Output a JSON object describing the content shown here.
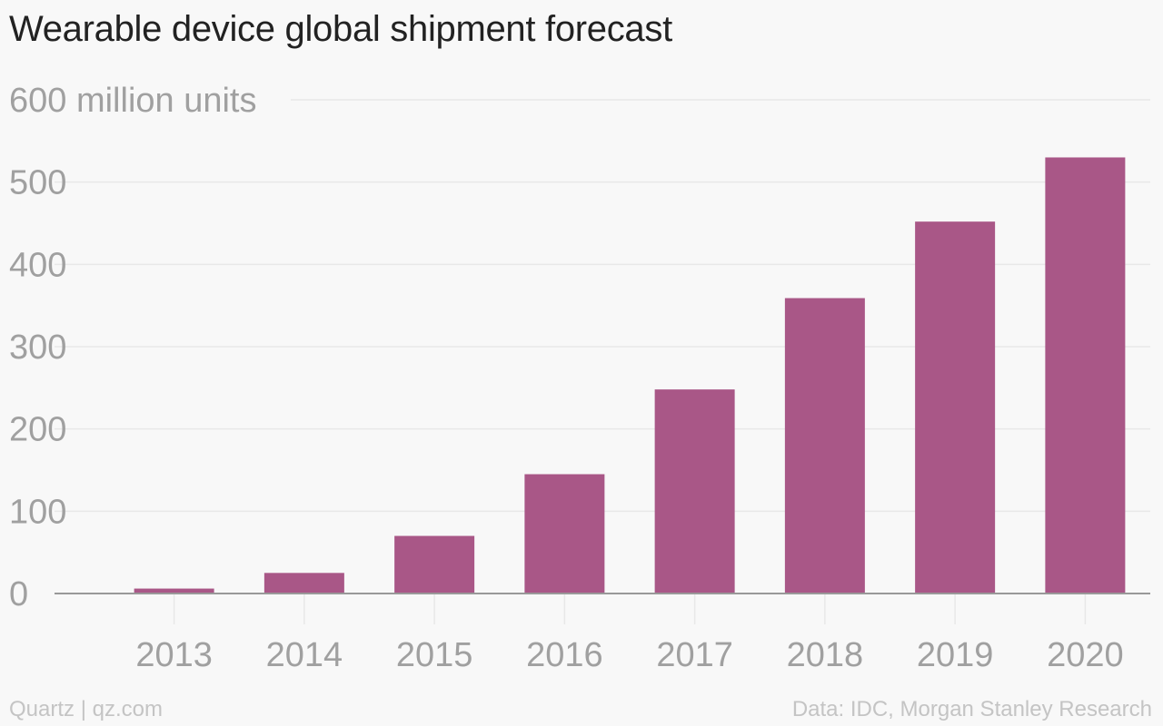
{
  "page": {
    "title": "Wearable device global shipment forecast",
    "source_credit": "Quartz | qz.com",
    "data_credit": "Data: IDC, Morgan Stanley Research"
  },
  "colors": {
    "bar": "#a95787",
    "gridline": "#e8e8e8",
    "tick_text": "#a0a0a0",
    "baseline": "#999999"
  },
  "chart_data": {
    "type": "bar",
    "title": "Wearable device global shipment forecast",
    "ylabel": "",
    "categories": [
      "2013",
      "2014",
      "2015",
      "2016",
      "2017",
      "2018",
      "2019",
      "2020"
    ],
    "values": [
      6,
      25,
      70,
      145,
      248,
      359,
      452,
      530
    ],
    "ylim": [
      0,
      600
    ],
    "yticks": [
      0,
      100,
      200,
      300,
      400,
      500,
      600
    ],
    "ytick_labels": [
      "0",
      "100",
      "200",
      "300",
      "400",
      "500",
      "600 million units"
    ],
    "grid": true,
    "legend": "none"
  }
}
